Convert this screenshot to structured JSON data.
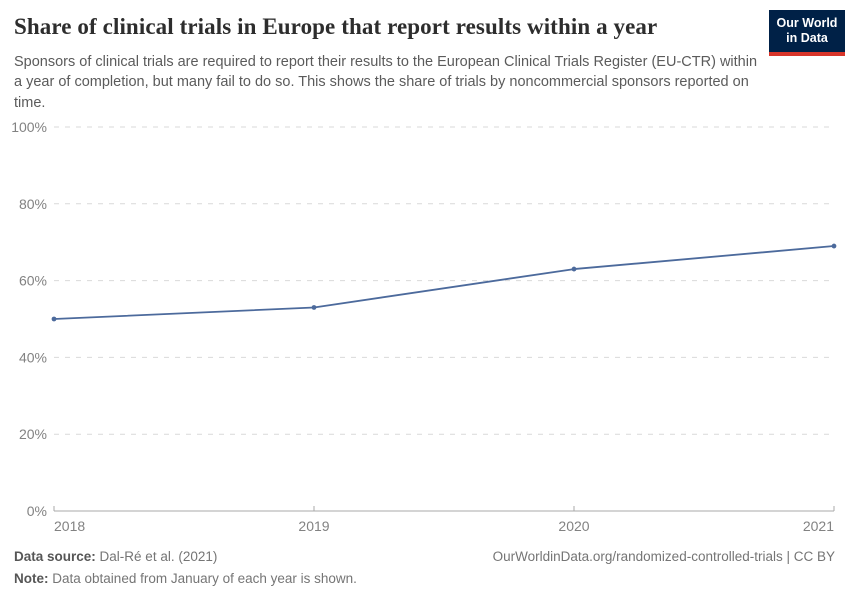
{
  "header": {
    "title": "Share of clinical trials in Europe that report results within a year",
    "subtitle": "Sponsors of clinical trials are required to report their results to the European Clinical Trials Register (EU-CTR) within a year of completion, but many fail to do so. This shows the share of trials by noncommercial sponsors reported on time.",
    "logo": {
      "line1": "Our World",
      "line2": "in Data",
      "bg_color": "#002147",
      "accent_color": "#d8352a"
    }
  },
  "chart_data": {
    "type": "line",
    "title": "Share of clinical trials in Europe that report results within a year",
    "x": [
      2018,
      2019,
      2020,
      2021
    ],
    "xtick_labels": [
      "2018",
      "2019",
      "2020",
      "2021"
    ],
    "series": [
      {
        "name": "Share of trials by noncommercial sponsors reported on time",
        "values": [
          50,
          53,
          63,
          69
        ]
      }
    ],
    "xlabel": "",
    "ylabel": "",
    "ylim": [
      0,
      100
    ],
    "yticks": [
      0,
      20,
      40,
      60,
      80,
      100
    ],
    "ytick_labels": [
      "0%",
      "20%",
      "40%",
      "60%",
      "80%",
      "100%"
    ],
    "grid": true,
    "gridline_style": "dashed",
    "legend_position": "none",
    "line_color": "#4C6A9C",
    "gridline_color": "#d9d9d9",
    "axis_color": "#a8a8a8",
    "tick_label_color": "#828282"
  },
  "footer": {
    "data_source_label": "Data source:",
    "data_source": "Dal-Ré et al. (2021)",
    "note_label": "Note:",
    "note": "Data obtained from January of each year is shown.",
    "attribution": "OurWorldinData.org/randomized-controlled-trials | CC BY"
  }
}
